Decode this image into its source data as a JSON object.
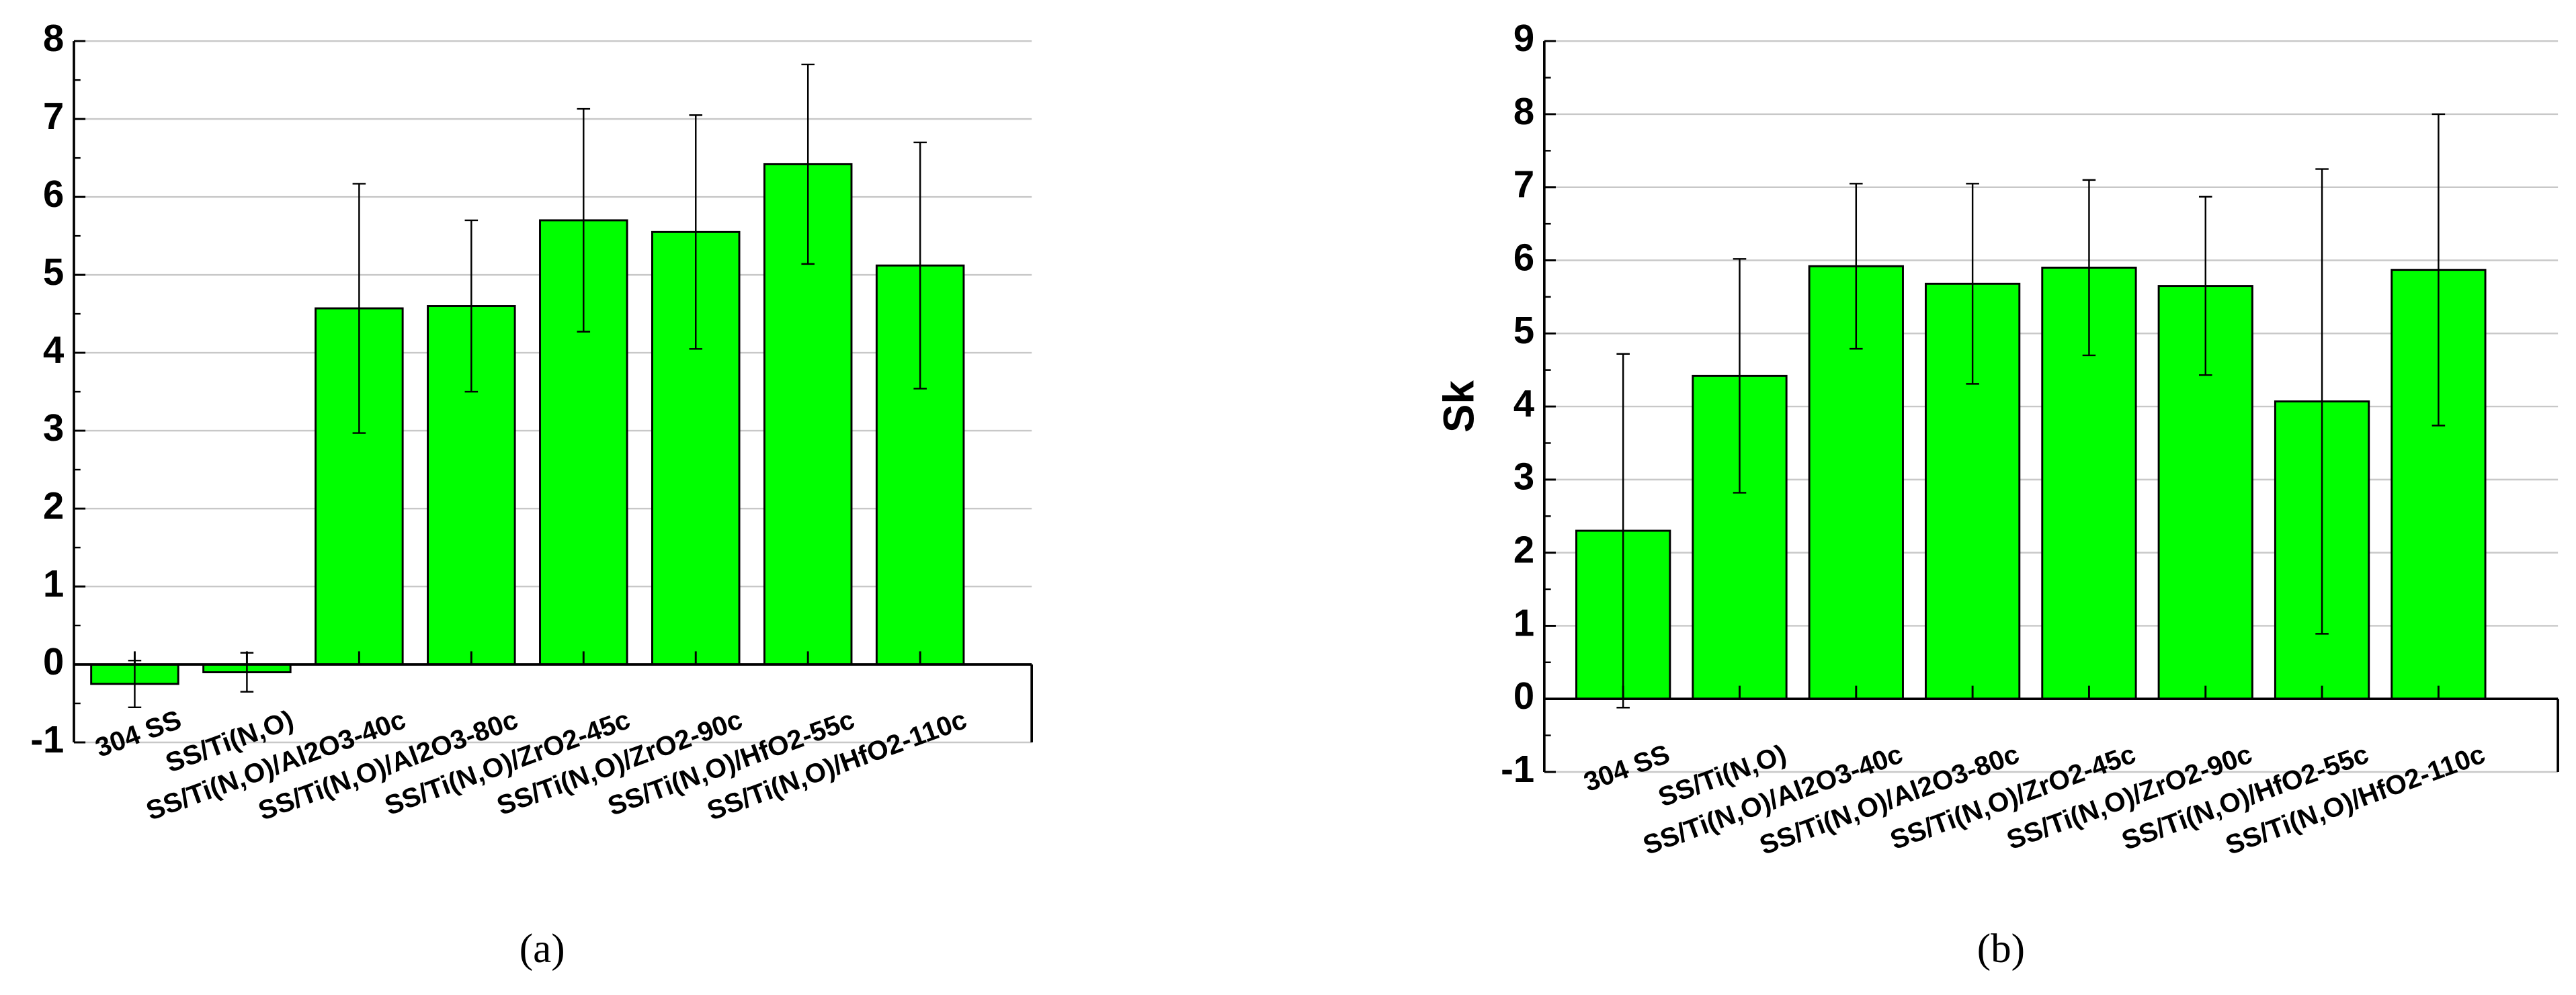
{
  "chart_data": [
    {
      "type": "bar",
      "caption": "(a)",
      "categories": [
        "304 SS",
        "SS/Ti(N,O)",
        "SS/Ti(N,O)/Al2O3-40c",
        "SS/Ti(N,O)/Al2O3-80c",
        "SS/Ti(N,O)/ZrO2-45c",
        "SS/Ti(N,O)/ZrO2-90c",
        "SS/Ti(N,O)/HfO2-55c",
        "SS/Ti(N,O)/HfO2-110c"
      ],
      "values": [
        -0.25,
        -0.1,
        4.57,
        4.6,
        5.7,
        5.55,
        6.42,
        5.12
      ],
      "errors": [
        0.3,
        0.25,
        1.6,
        1.1,
        1.43,
        1.5,
        1.28,
        1.58
      ],
      "color": "#00ff00",
      "ylim": [
        -1,
        8
      ],
      "yticks": [
        -1,
        0,
        1,
        2,
        3,
        4,
        5,
        6,
        7,
        8
      ],
      "grid": true
    },
    {
      "type": "bar",
      "caption": "(b)",
      "y_label": "Sk",
      "categories": [
        "304 SS",
        "SS/Ti(N,O)",
        "SS/Ti(N,O)/Al2O3-40c",
        "SS/Ti(N,O)/Al2O3-80c",
        "SS/Ti(N,O)/ZrO2-45c",
        "SS/Ti(N,O)/ZrO2-90c",
        "SS/Ti(N,O)/HfO2-55c",
        "SS/Ti(N,O)/HfO2-110c"
      ],
      "values": [
        2.3,
        4.42,
        5.92,
        5.68,
        5.9,
        5.65,
        4.07,
        5.87
      ],
      "errors": [
        2.42,
        1.6,
        1.13,
        1.37,
        1.2,
        1.22,
        3.18,
        2.13
      ],
      "color": "#00ff00",
      "ylim": [
        -1,
        9
      ],
      "yticks": [
        -1,
        0,
        1,
        2,
        3,
        4,
        5,
        6,
        7,
        8,
        9
      ],
      "grid": true
    }
  ]
}
